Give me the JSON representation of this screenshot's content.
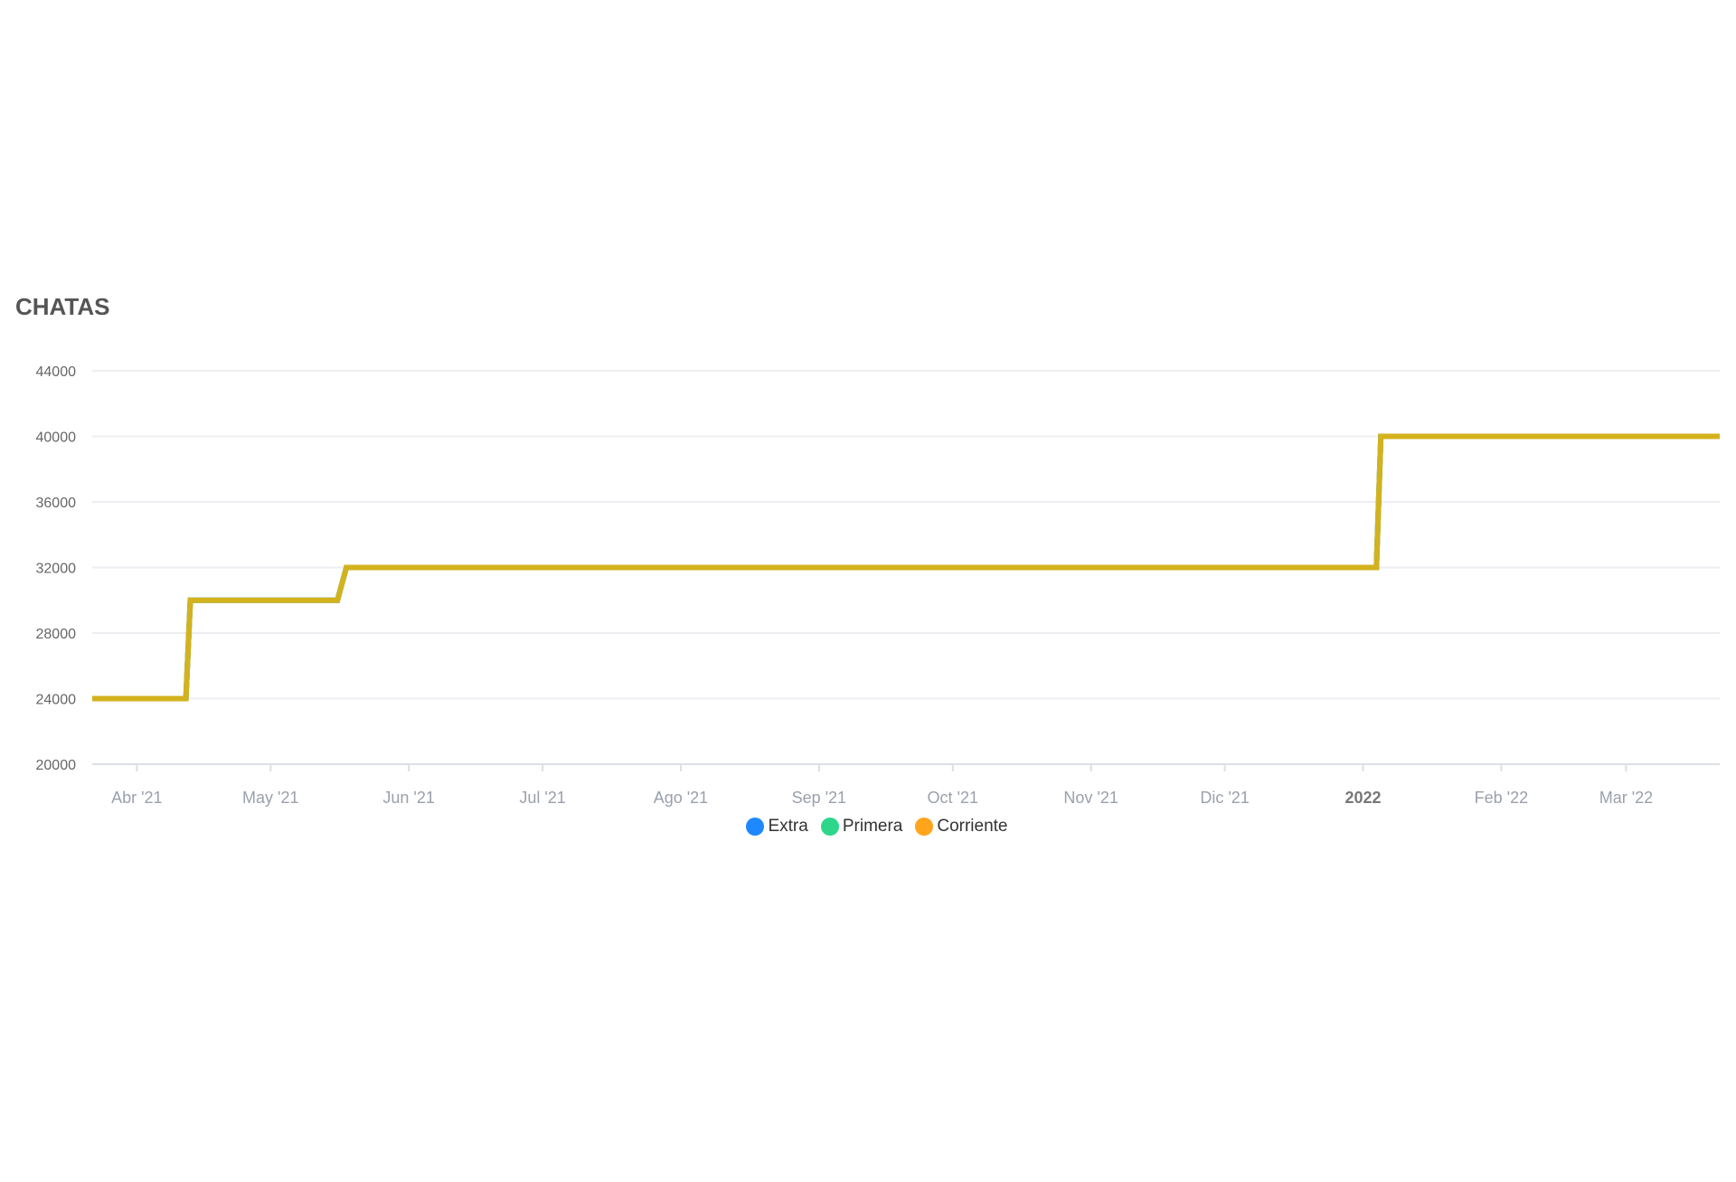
{
  "chart_data": {
    "type": "line",
    "title": "CHATAS",
    "xlabel": "",
    "ylabel": "",
    "ylim": [
      20000,
      44000
    ],
    "yticks": [
      "44000",
      "40000",
      "36000",
      "32000",
      "28000",
      "24000",
      "20000"
    ],
    "xlim": [
      "2021-03-22",
      "2022-03-22"
    ],
    "xticks": [
      {
        "date": "2021-04-01",
        "label": "Abr '21"
      },
      {
        "date": "2021-05-01",
        "label": "May '21"
      },
      {
        "date": "2021-06-01",
        "label": "Jun '21"
      },
      {
        "date": "2021-07-01",
        "label": "Jul '21"
      },
      {
        "date": "2021-08-01",
        "label": "Ago '21"
      },
      {
        "date": "2021-09-01",
        "label": "Sep '21"
      },
      {
        "date": "2021-10-01",
        "label": "Oct '21"
      },
      {
        "date": "2021-11-01",
        "label": "Nov '21"
      },
      {
        "date": "2021-12-01",
        "label": "Dic '21"
      },
      {
        "date": "2022-01-01",
        "label": "2022",
        "bold": true
      },
      {
        "date": "2022-02-01",
        "label": "Feb '22"
      },
      {
        "date": "2022-03-01",
        "label": "Mar '22"
      }
    ],
    "grid": true,
    "legend_position": "bottom",
    "line_color": "#d4b21e",
    "series": [
      {
        "name": "Extra",
        "color": "#1e88ff",
        "points": [
          [
            "2021-03-22",
            24000
          ],
          [
            "2021-04-12",
            24000
          ],
          [
            "2021-04-13",
            30000
          ],
          [
            "2021-05-16",
            30000
          ],
          [
            "2021-05-18",
            32000
          ],
          [
            "2022-01-04",
            32000
          ],
          [
            "2022-01-05",
            40000
          ],
          [
            "2022-03-22",
            40000
          ]
        ]
      },
      {
        "name": "Primera",
        "color": "#2ed68a",
        "points": [
          [
            "2021-03-22",
            24000
          ],
          [
            "2021-04-12",
            24000
          ],
          [
            "2021-04-13",
            30000
          ],
          [
            "2021-05-16",
            30000
          ],
          [
            "2021-05-18",
            32000
          ],
          [
            "2022-01-04",
            32000
          ],
          [
            "2022-01-05",
            40000
          ],
          [
            "2022-03-22",
            40000
          ]
        ]
      },
      {
        "name": "Corriente",
        "color": "#ffa41b",
        "points": [
          [
            "2021-03-22",
            24000
          ],
          [
            "2021-04-12",
            24000
          ],
          [
            "2021-04-13",
            30000
          ],
          [
            "2021-05-16",
            30000
          ],
          [
            "2021-05-18",
            32000
          ],
          [
            "2022-01-04",
            32000
          ],
          [
            "2022-01-05",
            40000
          ],
          [
            "2022-03-22",
            40000
          ]
        ]
      }
    ]
  }
}
